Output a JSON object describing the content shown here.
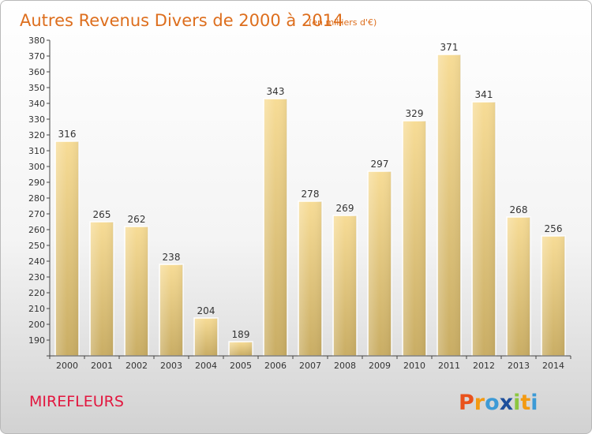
{
  "chart_data": {
    "type": "bar",
    "title": "Autres Revenus Divers de 2000 à 2014",
    "subtitle": "(en milliers d'€)",
    "categories": [
      "2000",
      "2001",
      "2002",
      "2003",
      "2004",
      "2005",
      "2006",
      "2007",
      "2008",
      "2009",
      "2010",
      "2011",
      "2012",
      "2013",
      "2014"
    ],
    "values": [
      316,
      265,
      262,
      238,
      204,
      189,
      343,
      278,
      269,
      297,
      329,
      371,
      341,
      268,
      256
    ],
    "ylim": [
      180,
      380
    ],
    "ytick_step": 10,
    "xlabel": "",
    "ylabel": "",
    "grid": false,
    "bar_color_top": "#f7dc96",
    "bar_color_bottom": "#c9ad64"
  },
  "footer": {
    "commune": "MIREFLEURS",
    "logo": [
      "P",
      "r",
      "o",
      "x",
      "i",
      "t",
      "i"
    ],
    "logo_colors": [
      "#e9521c",
      "#f39a12",
      "#3c9ad6",
      "#1e4f9c",
      "#8cc63f",
      "#f39a12",
      "#3c9ad6"
    ]
  }
}
